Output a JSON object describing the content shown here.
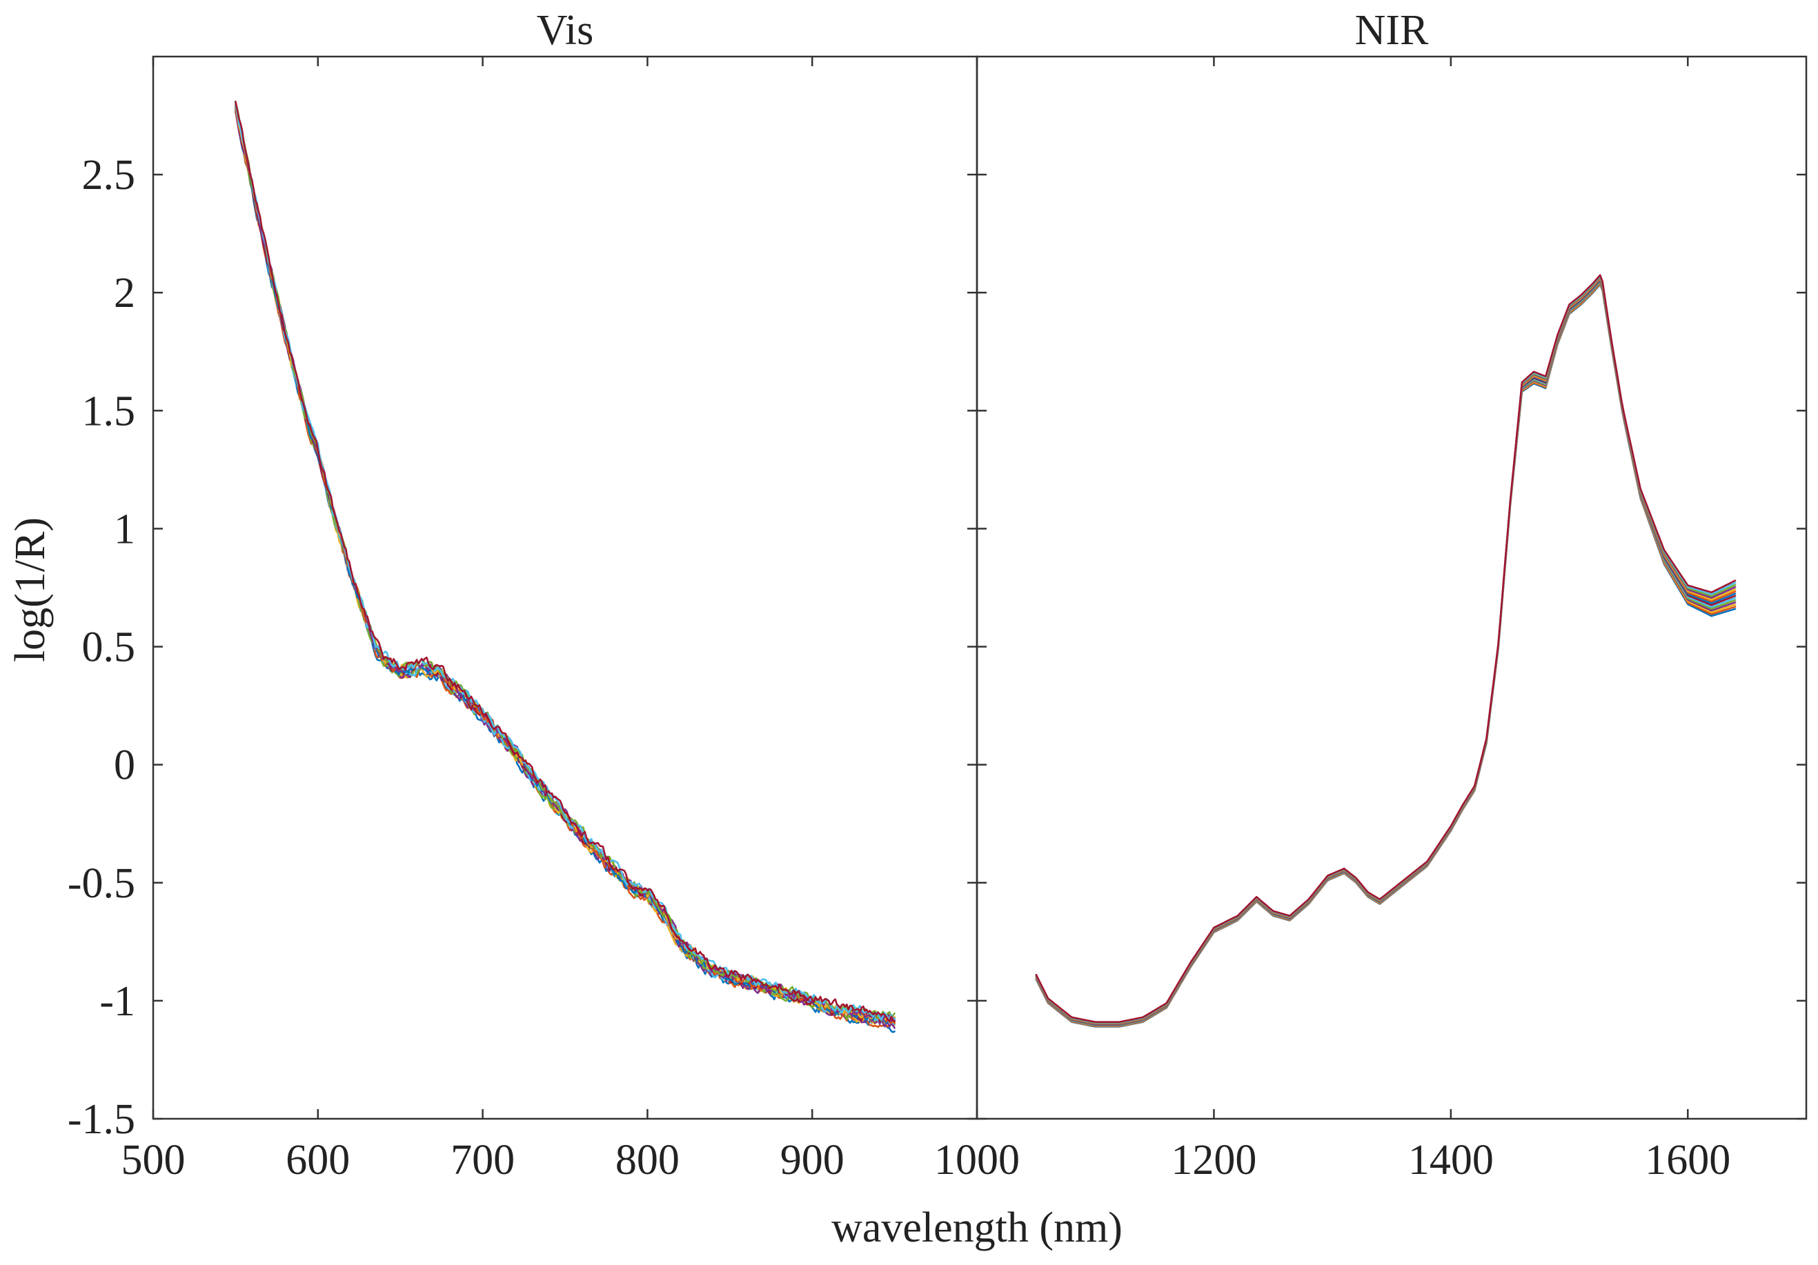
{
  "chart_data": {
    "type": "line",
    "ylabel": "log(1/R)",
    "xlabel": "wavelength (nm)",
    "ylim": [
      -1.5,
      3.0
    ],
    "yticks": [
      -1.5,
      -1,
      -0.5,
      0,
      0.5,
      1,
      1.5,
      2,
      2.5
    ],
    "ytick_labels": [
      "-1.5",
      "-1",
      "-0.5",
      "0",
      "0.5",
      "1",
      "1.5",
      "2",
      "2.5"
    ],
    "series_count": 14,
    "series_colors": [
      "#0072BD",
      "#D95319",
      "#EDB120",
      "#7E2F8E",
      "#77AC30",
      "#4DBEEE",
      "#A2142F",
      "#0072BD",
      "#D95319",
      "#EDB120",
      "#7E2F8E",
      "#77AC30",
      "#4DBEEE",
      "#A2142F"
    ],
    "panels": [
      {
        "title": "Vis",
        "xlim": [
          500,
          1000
        ],
        "xticks": [
          500,
          600,
          700,
          800,
          900,
          1000
        ],
        "xtick_labels": [
          "500",
          "600",
          "700",
          "800",
          "900",
          "1000"
        ],
        "noise": 0.035,
        "x": [
          550,
          555,
          560,
          565,
          570,
          575,
          580,
          585,
          590,
          595,
          600,
          605,
          610,
          615,
          620,
          625,
          630,
          635,
          640,
          645,
          650,
          655,
          660,
          665,
          670,
          675,
          680,
          690,
          700,
          710,
          720,
          730,
          740,
          750,
          760,
          770,
          780,
          790,
          800,
          810,
          820,
          830,
          840,
          850,
          860,
          870,
          880,
          890,
          900,
          910,
          920,
          930,
          940,
          950
        ],
        "mean": [
          2.78,
          2.62,
          2.45,
          2.28,
          2.12,
          1.98,
          1.83,
          1.68,
          1.55,
          1.42,
          1.32,
          1.18,
          1.05,
          0.93,
          0.8,
          0.7,
          0.6,
          0.5,
          0.45,
          0.42,
          0.4,
          0.4,
          0.41,
          0.41,
          0.4,
          0.38,
          0.34,
          0.28,
          0.21,
          0.13,
          0.05,
          -0.05,
          -0.14,
          -0.22,
          -0.3,
          -0.37,
          -0.45,
          -0.52,
          -0.55,
          -0.63,
          -0.76,
          -0.82,
          -0.87,
          -0.9,
          -0.92,
          -0.94,
          -0.96,
          -0.98,
          -1.0,
          -1.03,
          -1.05,
          -1.06,
          -1.07,
          -1.09
        ]
      },
      {
        "title": "NIR",
        "xlim": [
          1000,
          1700
        ],
        "xticks": [
          1200,
          1400,
          1600
        ],
        "xtick_labels": [
          "1200",
          "1400",
          "1600"
        ],
        "noise": 0.004,
        "x": [
          1050,
          1060,
          1080,
          1100,
          1120,
          1140,
          1160,
          1180,
          1200,
          1220,
          1236,
          1250,
          1264,
          1280,
          1296,
          1310,
          1320,
          1330,
          1340,
          1360,
          1380,
          1400,
          1410,
          1420,
          1430,
          1440,
          1450,
          1460,
          1470,
          1480,
          1490,
          1500,
          1510,
          1520,
          1527,
          1535,
          1545,
          1560,
          1580,
          1600,
          1620,
          1640
        ],
        "mean": [
          -0.9,
          -1.0,
          -1.08,
          -1.1,
          -1.1,
          -1.08,
          -1.02,
          -0.85,
          -0.7,
          -0.65,
          -0.57,
          -0.63,
          -0.65,
          -0.58,
          -0.48,
          -0.45,
          -0.49,
          -0.55,
          -0.58,
          -0.5,
          -0.42,
          -0.27,
          -0.18,
          -0.1,
          0.1,
          0.5,
          1.1,
          1.6,
          1.64,
          1.62,
          1.8,
          1.93,
          1.97,
          2.02,
          2.06,
          1.8,
          1.5,
          1.15,
          0.88,
          0.72,
          0.68,
          0.72
        ],
        "spread": [
          0.01,
          0.01,
          0.01,
          0.01,
          0.01,
          0.01,
          0.01,
          0.01,
          0.01,
          0.01,
          0.01,
          0.01,
          0.01,
          0.01,
          0.01,
          0.01,
          0.01,
          0.01,
          0.01,
          0.01,
          0.01,
          0.01,
          0.01,
          0.01,
          0.01,
          0.01,
          0.01,
          0.02,
          0.025,
          0.025,
          0.02,
          0.02,
          0.02,
          0.02,
          0.02,
          0.015,
          0.015,
          0.02,
          0.03,
          0.04,
          0.05,
          0.06
        ]
      }
    ]
  }
}
